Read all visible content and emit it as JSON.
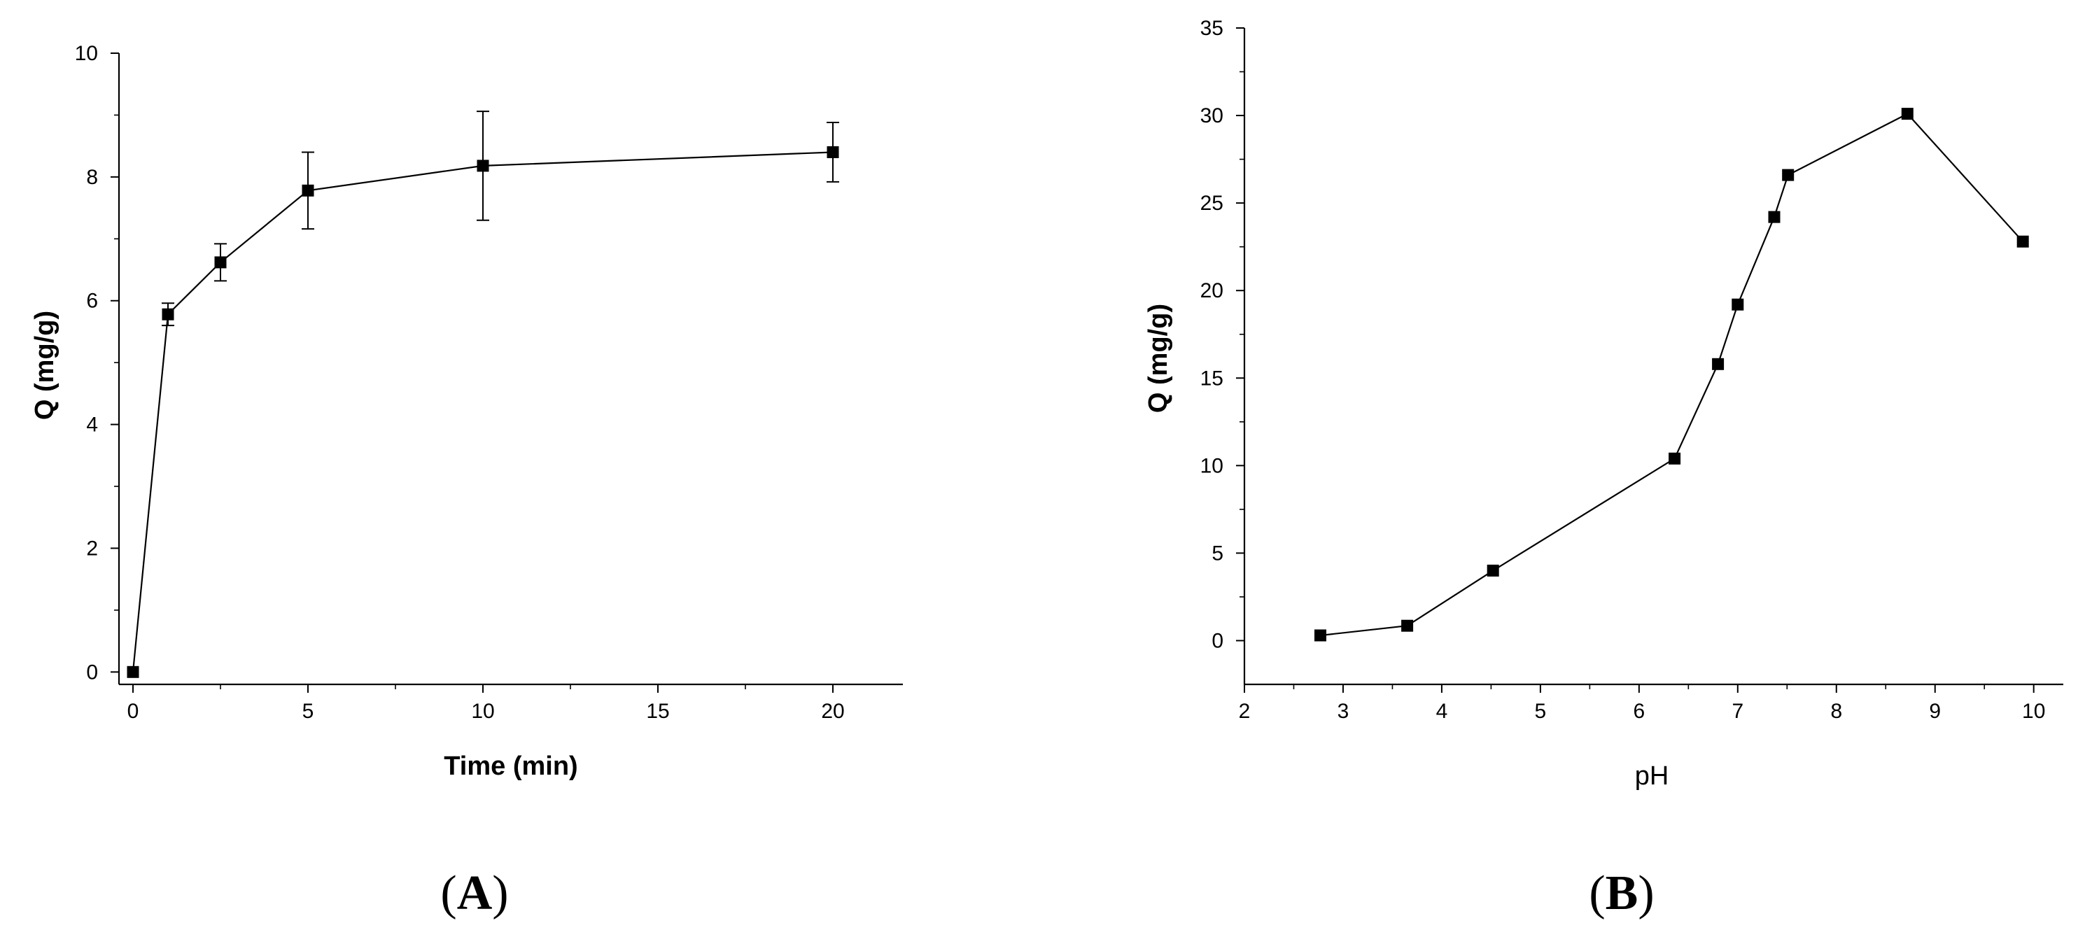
{
  "chart_data": [
    {
      "type": "line",
      "panel_label": "(A)",
      "panel_label_letter": "A",
      "xlabel": "Time (min)",
      "ylabel": "Q (mg/g)",
      "xlim": [
        -0.4,
        22.0
      ],
      "ylim": [
        -0.2,
        10.0
      ],
      "xticks": [
        0,
        5,
        10,
        15,
        20
      ],
      "yticks": [
        0,
        2,
        4,
        6,
        8,
        10
      ],
      "grid": false,
      "marker": "square",
      "line_color": "#000000",
      "series": [
        {
          "x": [
            0,
            1,
            2.5,
            5,
            10,
            20
          ],
          "y": [
            0.0,
            5.78,
            6.62,
            7.78,
            8.18,
            8.4
          ],
          "err": [
            0,
            0.18,
            0.3,
            0.62,
            0.88,
            0.48
          ]
        }
      ]
    },
    {
      "type": "line",
      "panel_label": "(B)",
      "panel_label_letter": "B",
      "xlabel": "pH",
      "ylabel": "Q (mg/g)",
      "xlim": [
        2.0,
        10.3
      ],
      "ylim": [
        -2.5,
        35.0
      ],
      "xticks": [
        2,
        3,
        4,
        5,
        6,
        7,
        8,
        9,
        10
      ],
      "yticks": [
        0,
        5,
        10,
        15,
        20,
        25,
        30,
        35
      ],
      "grid": false,
      "marker": "square",
      "line_color": "#000000",
      "series": [
        {
          "x": [
            2.77,
            3.65,
            4.52,
            6.36,
            6.8,
            7.0,
            7.37,
            7.51,
            8.72,
            9.89
          ],
          "y": [
            0.3,
            0.85,
            4.0,
            10.4,
            15.8,
            19.2,
            24.2,
            26.6,
            30.1,
            22.8
          ]
        }
      ]
    }
  ]
}
